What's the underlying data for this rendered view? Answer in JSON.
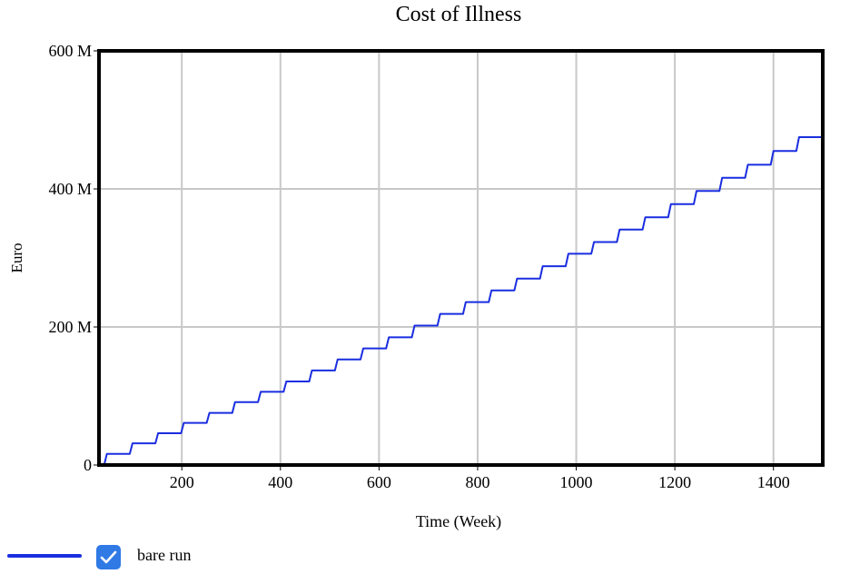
{
  "chart_data": {
    "type": "line",
    "title": "Cost of Illness",
    "xlabel": "Time (Week)",
    "ylabel": "Euro",
    "xlim": [
      32,
      1500
    ],
    "ylim": [
      0,
      600000000
    ],
    "x_ticks": [
      200,
      400,
      600,
      800,
      1000,
      1200,
      1400
    ],
    "x_tick_labels": [
      "200",
      "400",
      "600",
      "800",
      "1000",
      "1200",
      "1400"
    ],
    "y_ticks": [
      0,
      200000000,
      400000000,
      600000000
    ],
    "y_tick_labels": [
      "0",
      "200 M",
      "400 M",
      "600 M"
    ],
    "grid": true,
    "step_shape": "staircase",
    "series": [
      {
        "name": "bare run",
        "color": "#1a2ee0",
        "x": [
          32,
          48,
          100,
          152,
          204,
          256,
          308,
          360,
          412,
          464,
          516,
          568,
          620,
          672,
          724,
          776,
          828,
          880,
          932,
          984,
          1036,
          1088,
          1140,
          1192,
          1244,
          1296,
          1348,
          1400,
          1452,
          1500
        ],
        "values": [
          0,
          16000000,
          31500000,
          46000000,
          61000000,
          75500000,
          91000000,
          106000000,
          121000000,
          137000000,
          153000000,
          169000000,
          185000000,
          202000000,
          219000000,
          236000000,
          253000000,
          270000000,
          288000000,
          306000000,
          323000000,
          341000000,
          359000000,
          378000000,
          397000000,
          416000000,
          435000000,
          455000000,
          475000000,
          475000000
        ]
      }
    ]
  },
  "legend": {
    "label": "bare run",
    "checked": true
  }
}
